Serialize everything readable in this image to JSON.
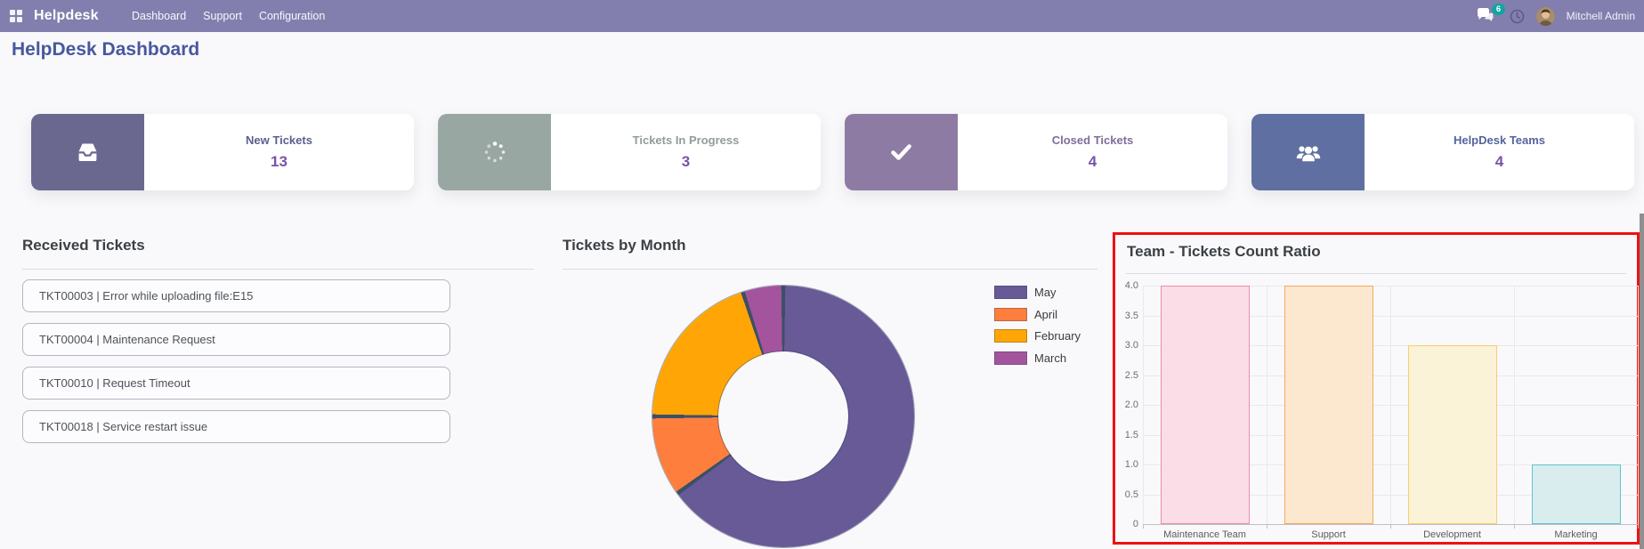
{
  "navbar": {
    "brand": "Helpdesk",
    "menu": [
      "Dashboard",
      "Support",
      "Configuration"
    ],
    "message_count": "6",
    "user_name": "Mitchell Admin",
    "bg_color": "#827fae",
    "badge_color": "#12a5a0"
  },
  "page": {
    "title": "HelpDesk Dashboard"
  },
  "kpis": [
    {
      "label": "New Tickets",
      "value": "13",
      "block_color": "#6b6890",
      "title_color": "#5c5f90",
      "icon": "inbox-icon"
    },
    {
      "label": "Tickets In Progress",
      "value": "3",
      "block_color": "#99a7a2",
      "title_color": "#909e9a",
      "icon": "spinner-icon"
    },
    {
      "label": "Closed Tickets",
      "value": "4",
      "block_color": "#8d7ba4",
      "title_color": "#7f6f9b",
      "icon": "check-icon"
    },
    {
      "label": "HelpDesk Teams",
      "value": "4",
      "block_color": "#5f6fa1",
      "title_color": "#55649d",
      "icon": "users-icon"
    }
  ],
  "received_tickets": {
    "title": "Received Tickets",
    "items": [
      "TKT00003 | Error while uploading file:E15",
      "TKT00004 | Maintenance Request",
      "TKT00010 | Request Timeout",
      "TKT00018 | Service restart issue"
    ]
  },
  "accent_colors": {
    "kpi_value_purple": "#7a52a8",
    "heading_blue": "#47589e",
    "highlight_red": "#ee1111"
  },
  "chart_data": [
    {
      "type": "pie",
      "subtype": "donut",
      "title": "Tickets by Month",
      "labels": [
        "May",
        "April",
        "February",
        "March"
      ],
      "values": [
        13,
        2,
        4,
        1
      ],
      "colors": [
        "#685997",
        "#fd7e3d",
        "#ffa606",
        "#a4549c"
      ],
      "hole_ratio": 0.5,
      "legend_position": "right",
      "separator_color": "#3d4f66"
    },
    {
      "type": "bar",
      "title": "Team - Tickets Count Ratio",
      "categories": [
        "Maintenance Team",
        "Support",
        "Development",
        "Marketing"
      ],
      "values": [
        4,
        4,
        3,
        1
      ],
      "ylim": [
        0,
        4
      ],
      "ytick_step": 0.5,
      "grid": true,
      "bar_fills": [
        "#fadde6",
        "#fce8ce",
        "#fbf3d8",
        "#d9edef"
      ],
      "bar_strokes": [
        "#f08ba6",
        "#f4a860",
        "#f6cf6b",
        "#5fc6c9"
      ]
    }
  ]
}
